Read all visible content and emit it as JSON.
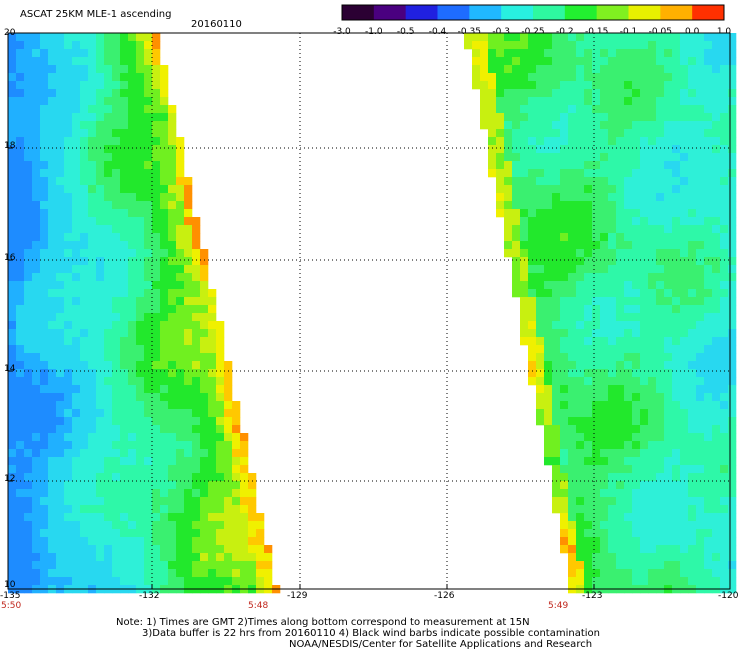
{
  "header": {
    "title": "ASCAT 25KM MLE-1 ascending",
    "date": "20160110"
  },
  "colorbar": {
    "ticks": [
      "-3.0",
      "-1.0",
      "-0.5",
      "-0.4",
      "-0.35",
      "-0.3",
      "-0.25",
      "-0.2",
      "-0.15",
      "-0.1",
      "-0.05",
      "0.0",
      "1.0"
    ],
    "colors": [
      "#2b0033",
      "#4a0080",
      "#2020e0",
      "#1e6cff",
      "#20b8ff",
      "#28f0e0",
      "#2ef8a0",
      "#22f030",
      "#80f020",
      "#e8f000",
      "#ffb000",
      "#ff3000"
    ]
  },
  "axes": {
    "lat_labels": [
      "20",
      "18",
      "16",
      "14",
      "12",
      "10"
    ],
    "lon_labels": [
      "-135",
      "-132",
      "-129",
      "-126",
      "-123",
      "-120"
    ],
    "time_labels": [
      "5:50",
      "5:48",
      "5:49"
    ]
  },
  "notes": {
    "line1": "Note: 1) Times are GMT 2)Times along bottom correspond to measurement at 15N",
    "line2": "3)Data buffer is 22 hrs from 20160110 4) Black wind barbs indicate possible contamination",
    "line3": "NOAA/NESDIS/Center for Satellite Applications and Research"
  }
}
